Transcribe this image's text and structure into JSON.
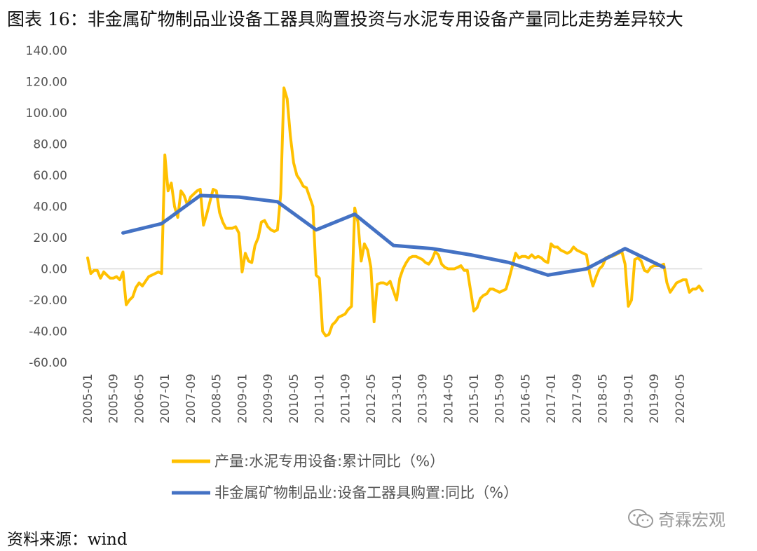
{
  "title": "图表 16：非金属矿物制品业设备工器具购置投资与水泥专用设备产量同比走势差异较大",
  "source": "资料来源：wind",
  "watermark": "奇霖宏观",
  "chart_data": {
    "type": "line",
    "title": "图表 16：非金属矿物制品业设备工器具购置投资与水泥专用设备产量同比走势差异较大",
    "ylim": [
      -60,
      140
    ],
    "yticks": [
      140,
      120,
      100,
      80,
      60,
      40,
      20,
      0,
      -20,
      -40,
      -60
    ],
    "ytick_labels": [
      "140.00",
      "120.00",
      "100.00",
      "80.00",
      "60.00",
      "40.00",
      "20.00",
      "0.00",
      "-20.00",
      "-40.00",
      "-60.00"
    ],
    "xtick_labels": [
      "2005-01",
      "2005-09",
      "2006-05",
      "2007-01",
      "2007-09",
      "2008-05",
      "2009-01",
      "2009-09",
      "2010-05",
      "2011-01",
      "2011-09",
      "2012-05",
      "2013-01",
      "2013-09",
      "2014-05",
      "2015-01",
      "2015-09",
      "2016-05",
      "2017-01",
      "2017-09",
      "2018-05",
      "2019-01",
      "2019-09",
      "2020-05"
    ],
    "x_range": [
      "2005-01",
      "2020-12"
    ],
    "grid": false,
    "legend_position": "bottom",
    "series": [
      {
        "name": "产量:水泥专用设备:累计同比（%）",
        "color": "#FFC000",
        "points": [
          [
            "2005-01",
            7
          ],
          [
            "2005-02",
            -3
          ],
          [
            "2005-03",
            -1
          ],
          [
            "2005-04",
            -1
          ],
          [
            "2005-05",
            -6
          ],
          [
            "2005-06",
            -2
          ],
          [
            "2005-07",
            -4
          ],
          [
            "2005-08",
            -6
          ],
          [
            "2005-09",
            -6
          ],
          [
            "2005-10",
            -5
          ],
          [
            "2005-11",
            -7
          ],
          [
            "2005-12",
            -2
          ],
          [
            "2006-01",
            -23
          ],
          [
            "2006-02",
            -20
          ],
          [
            "2006-03",
            -18
          ],
          [
            "2006-04",
            -12
          ],
          [
            "2006-05",
            -9
          ],
          [
            "2006-06",
            -11
          ],
          [
            "2006-07",
            -8
          ],
          [
            "2006-08",
            -5
          ],
          [
            "2006-09",
            -4
          ],
          [
            "2006-10",
            -3
          ],
          [
            "2006-11",
            -2
          ],
          [
            "2006-12",
            -3
          ],
          [
            "2007-01",
            73
          ],
          [
            "2007-02",
            50
          ],
          [
            "2007-03",
            55
          ],
          [
            "2007-04",
            40
          ],
          [
            "2007-05",
            33
          ],
          [
            "2007-06",
            50
          ],
          [
            "2007-07",
            47
          ],
          [
            "2007-08",
            41
          ],
          [
            "2007-09",
            46
          ],
          [
            "2007-10",
            48
          ],
          [
            "2007-11",
            50
          ],
          [
            "2007-12",
            51
          ],
          [
            "2008-01",
            28
          ],
          [
            "2008-02",
            35
          ],
          [
            "2008-03",
            43
          ],
          [
            "2008-04",
            51
          ],
          [
            "2008-05",
            50
          ],
          [
            "2008-06",
            36
          ],
          [
            "2008-07",
            30
          ],
          [
            "2008-08",
            26
          ],
          [
            "2008-09",
            26
          ],
          [
            "2008-10",
            26
          ],
          [
            "2008-11",
            27
          ],
          [
            "2008-12",
            23
          ],
          [
            "2009-01",
            -2
          ],
          [
            "2009-02",
            10
          ],
          [
            "2009-03",
            5
          ],
          [
            "2009-04",
            4
          ],
          [
            "2009-05",
            15
          ],
          [
            "2009-06",
            20
          ],
          [
            "2009-07",
            30
          ],
          [
            "2009-08",
            31
          ],
          [
            "2009-09",
            27
          ],
          [
            "2009-10",
            25
          ],
          [
            "2009-11",
            24
          ],
          [
            "2009-12",
            25
          ],
          [
            "2010-01",
            48
          ],
          [
            "2010-02",
            116
          ],
          [
            "2010-03",
            109
          ],
          [
            "2010-04",
            85
          ],
          [
            "2010-05",
            68
          ],
          [
            "2010-06",
            60
          ],
          [
            "2010-07",
            57
          ],
          [
            "2010-08",
            53
          ],
          [
            "2010-09",
            52
          ],
          [
            "2010-10",
            46
          ],
          [
            "2010-11",
            40
          ],
          [
            "2010-12",
            -4
          ],
          [
            "2011-01",
            -6
          ],
          [
            "2011-02",
            -40
          ],
          [
            "2011-03",
            -43
          ],
          [
            "2011-04",
            -42
          ],
          [
            "2011-05",
            -36
          ],
          [
            "2011-06",
            -34
          ],
          [
            "2011-07",
            -31
          ],
          [
            "2011-08",
            -30
          ],
          [
            "2011-09",
            -29
          ],
          [
            "2011-10",
            -26
          ],
          [
            "2011-11",
            -24
          ],
          [
            "2011-12",
            39
          ],
          [
            "2012-01",
            30
          ],
          [
            "2012-02",
            5
          ],
          [
            "2012-03",
            16
          ],
          [
            "2012-04",
            12
          ],
          [
            "2012-05",
            1
          ],
          [
            "2012-06",
            -34
          ],
          [
            "2012-07",
            -10
          ],
          [
            "2012-08",
            -9
          ],
          [
            "2012-09",
            -9
          ],
          [
            "2012-10",
            -10
          ],
          [
            "2012-11",
            -8
          ],
          [
            "2012-12",
            -14
          ],
          [
            "2013-01",
            -20
          ],
          [
            "2013-02",
            -6
          ],
          [
            "2013-03",
            0
          ],
          [
            "2013-04",
            4
          ],
          [
            "2013-05",
            7
          ],
          [
            "2013-06",
            8
          ],
          [
            "2013-07",
            8
          ],
          [
            "2013-08",
            7
          ],
          [
            "2013-09",
            6
          ],
          [
            "2013-10",
            4
          ],
          [
            "2013-11",
            3
          ],
          [
            "2013-12",
            6
          ],
          [
            "2014-01",
            11
          ],
          [
            "2014-02",
            9
          ],
          [
            "2014-03",
            3
          ],
          [
            "2014-04",
            1
          ],
          [
            "2014-05",
            0
          ],
          [
            "2014-06",
            0
          ],
          [
            "2014-07",
            0
          ],
          [
            "2014-08",
            1
          ],
          [
            "2014-09",
            2
          ],
          [
            "2014-10",
            -1
          ],
          [
            "2014-11",
            -1
          ],
          [
            "2014-12",
            -14
          ],
          [
            "2015-01",
            -27
          ],
          [
            "2015-02",
            -25
          ],
          [
            "2015-03",
            -19
          ],
          [
            "2015-04",
            -17
          ],
          [
            "2015-05",
            -16
          ],
          [
            "2015-06",
            -13
          ],
          [
            "2015-07",
            -13
          ],
          [
            "2015-08",
            -14
          ],
          [
            "2015-09",
            -15
          ],
          [
            "2015-10",
            -14
          ],
          [
            "2015-11",
            -13
          ],
          [
            "2015-12",
            -6
          ],
          [
            "2016-01",
            2
          ],
          [
            "2016-02",
            10
          ],
          [
            "2016-03",
            7
          ],
          [
            "2016-04",
            8
          ],
          [
            "2016-05",
            8
          ],
          [
            "2016-06",
            7
          ],
          [
            "2016-07",
            9
          ],
          [
            "2016-08",
            7
          ],
          [
            "2016-09",
            8
          ],
          [
            "2016-10",
            7
          ],
          [
            "2016-11",
            5
          ],
          [
            "2016-12",
            4
          ],
          [
            "2017-01",
            16
          ],
          [
            "2017-02",
            14
          ],
          [
            "2017-03",
            14
          ],
          [
            "2017-04",
            12
          ],
          [
            "2017-05",
            11
          ],
          [
            "2017-06",
            10
          ],
          [
            "2017-07",
            11
          ],
          [
            "2017-08",
            14
          ],
          [
            "2017-09",
            12
          ],
          [
            "2017-10",
            11
          ],
          [
            "2017-11",
            10
          ],
          [
            "2017-12",
            9
          ],
          [
            "2018-01",
            -3
          ],
          [
            "2018-02",
            -11
          ],
          [
            "2018-03",
            -5
          ],
          [
            "2018-04",
            0
          ],
          [
            "2018-05",
            2
          ],
          [
            "2018-06",
            7
          ],
          [
            "2018-07",
            8
          ],
          [
            "2018-08",
            8
          ],
          [
            "2018-09",
            9
          ],
          [
            "2018-10",
            10
          ],
          [
            "2018-11",
            11
          ],
          [
            "2018-12",
            3
          ],
          [
            "2019-01",
            -24
          ],
          [
            "2019-02",
            -20
          ],
          [
            "2019-03",
            6
          ],
          [
            "2019-04",
            7
          ],
          [
            "2019-05",
            5
          ],
          [
            "2019-06",
            -1
          ],
          [
            "2019-07",
            -2
          ],
          [
            "2019-08",
            1
          ],
          [
            "2019-09",
            2
          ],
          [
            "2019-10",
            2
          ],
          [
            "2019-11",
            2
          ],
          [
            "2019-12",
            3
          ],
          [
            "2020-01",
            -9
          ],
          [
            "2020-02",
            -15
          ],
          [
            "2020-03",
            -12
          ],
          [
            "2020-04",
            -9
          ],
          [
            "2020-05",
            -8
          ],
          [
            "2020-06",
            -7
          ],
          [
            "2020-07",
            -7
          ],
          [
            "2020-08",
            -15
          ],
          [
            "2020-09",
            -13
          ],
          [
            "2020-10",
            -13
          ],
          [
            "2020-11",
            -11
          ],
          [
            "2020-12",
            -14
          ]
        ]
      },
      {
        "name": "非金属矿物制品业:设备工器具购置:同比（%）",
        "color": "#4472C4",
        "points": [
          [
            "2005-12",
            23
          ],
          [
            "2006-12",
            29
          ],
          [
            "2007-12",
            47
          ],
          [
            "2008-12",
            46
          ],
          [
            "2009-12",
            43
          ],
          [
            "2010-12",
            25
          ],
          [
            "2011-12",
            35
          ],
          [
            "2012-12",
            15
          ],
          [
            "2013-12",
            13
          ],
          [
            "2014-12",
            9
          ],
          [
            "2015-12",
            4
          ],
          [
            "2016-12",
            -4
          ],
          [
            "2017-12",
            0
          ],
          [
            "2018-12",
            13
          ],
          [
            "2019-12",
            1
          ]
        ]
      }
    ]
  }
}
